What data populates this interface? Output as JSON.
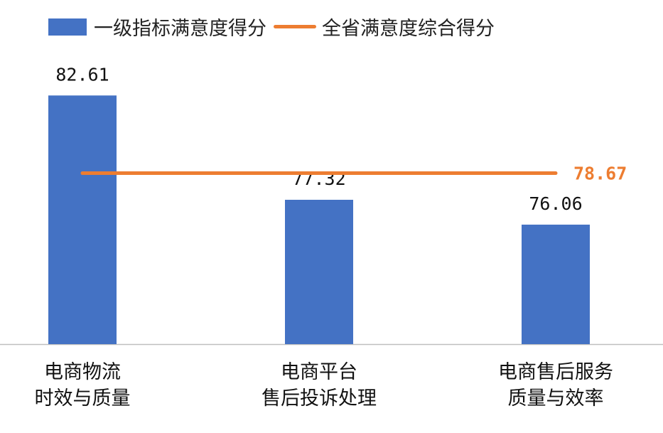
{
  "legend": {
    "bar_label": "一级指标满意度得分",
    "line_label": "全省满意度综合得分"
  },
  "colors": {
    "bar": "#4472C4",
    "line": "#ED7D31",
    "axis": "#BFBFBF"
  },
  "categories": [
    {
      "line1": "电商物流",
      "line2": "时效与质量"
    },
    {
      "line1": "电商平台",
      "line2": "售后投诉处理"
    },
    {
      "line1": "电商售后服务",
      "line2": "质量与效率"
    }
  ],
  "chart_data": {
    "type": "bar",
    "categories": [
      "电商物流时效与质量",
      "电商平台售后投诉处理",
      "电商售后服务质量与效率"
    ],
    "series": [
      {
        "name": "一级指标满意度得分",
        "type": "bar",
        "values": [
          82.61,
          77.32,
          76.06
        ]
      },
      {
        "name": "全省满意度综合得分",
        "type": "line",
        "values": [
          78.67,
          78.67,
          78.67
        ]
      }
    ],
    "bar_labels": [
      "82.61",
      "77.32",
      "76.06"
    ],
    "line_label": "78.67",
    "ylim": [
      70,
      85
    ],
    "grid": false,
    "legend_position": "top"
  }
}
